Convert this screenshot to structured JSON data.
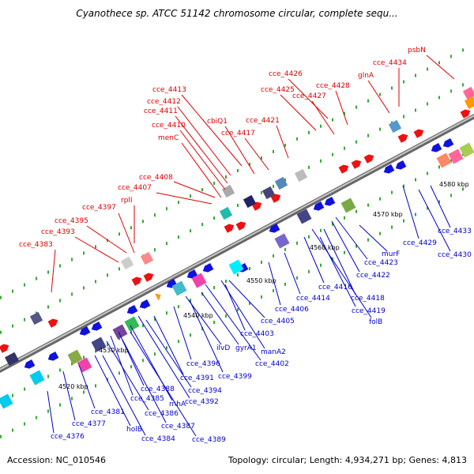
{
  "title": "Cyanothece sp. ATCC 51142 chromosome circular, complete sequ...",
  "footer": {
    "accession": "Accession: NC_010546",
    "summary": "Topology: circular; Length: 4,934,271 bp; Genes: 4,813"
  },
  "colors": {
    "plus_strand_label": "#dd0000",
    "minus_strand_label": "#0000cc",
    "backbone": "#888888",
    "tick": "#228822"
  },
  "scale_labels": [
    "4520 kbp",
    "4530 kbp",
    "4540 kbp",
    "4550 kbp",
    "4560 kbp",
    "4570 kbp",
    "4580 kbp"
  ],
  "top_labels": [
    "psbN",
    "cce_4434",
    "glnA",
    "cce_4426",
    "cce_4428",
    "cce_4425",
    "cce_4427",
    "cce_4413",
    "cce_4412",
    "cce_4411",
    "cce_4410",
    "menC",
    "cbiQ1",
    "cce_4417",
    "cce_4421",
    "cce_4408",
    "cce_4407",
    "rplI",
    "cce_4397",
    "cce_4395",
    "cce_4393",
    "cce_4383"
  ],
  "bottom_labels": [
    "cce_4433",
    "cce_4429",
    "cce_4430",
    "murF",
    "cce_4423",
    "cce_4422",
    "cce_4416",
    "cce_4418",
    "cce_4419",
    "folB",
    "cce_4414",
    "cce_4406",
    "cce_4405",
    "cce_4403",
    "manA2",
    "cce_4402",
    "ilvD",
    "gyrA1",
    "cce_4396",
    "cce_4399",
    "cce_4391",
    "cce_4394",
    "cce_4392",
    "cce_4388",
    "cce_4385",
    "rnhA",
    "cce_4386",
    "cce_4387",
    "cce_4389",
    "cce_4381",
    "cce_4377",
    "holB",
    "cce_4384",
    "cce_4376"
  ]
}
